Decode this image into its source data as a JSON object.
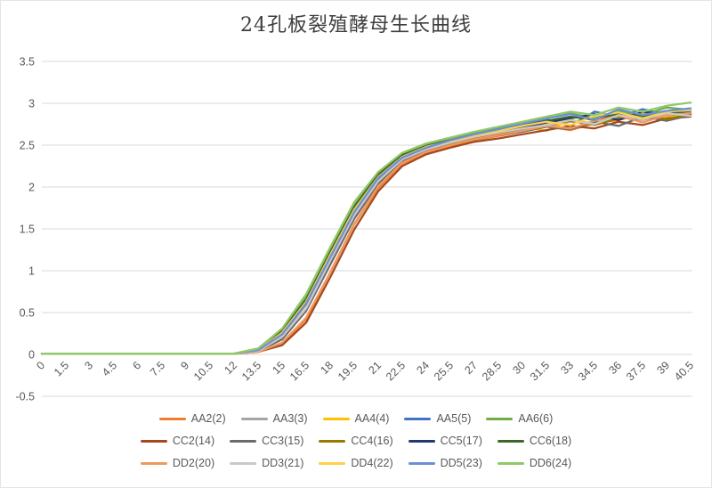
{
  "chart_data": {
    "type": "line",
    "title": "24孔板裂殖酵母生长曲线",
    "xlabel": "",
    "ylabel": "",
    "x": [
      0,
      1.5,
      3,
      4.5,
      6,
      7.5,
      9,
      10.5,
      12,
      13.5,
      15,
      16.5,
      18,
      19.5,
      21,
      22.5,
      24,
      25.5,
      27,
      28.5,
      30,
      31.5,
      33,
      34.5,
      36,
      37.5,
      39,
      40.5
    ],
    "x_tick_labels": [
      "0",
      "1.5",
      "3",
      "4.5",
      "6",
      "7.5",
      "9",
      "10.5",
      "12",
      "13.5",
      "15",
      "16.5",
      "18",
      "19.5",
      "21",
      "22.5",
      "24",
      "25.5",
      "27",
      "28.5",
      "30",
      "31.5",
      "33",
      "34.5",
      "36",
      "37.5",
      "39",
      "40.5"
    ],
    "ylim": [
      -0.5,
      3.5
    ],
    "y_ticks": [
      3.5,
      3,
      2.5,
      2,
      1.5,
      1,
      0.5,
      0,
      -0.5
    ],
    "y_tick_labels": [
      "3.5",
      "3",
      "2.5",
      "2",
      "1.5",
      "1",
      "0.5",
      "0",
      "-0.5"
    ],
    "grid": "horizontal",
    "legend_position": "bottom",
    "legend_columns": 5,
    "styles": {
      "axis_text_color": "#595959",
      "gridline_color": "#D9D9D9",
      "title_color": "#3D3D3D",
      "background": "#FFFFFF",
      "line_width": 2.25
    },
    "series": [
      {
        "name": "AA2(2)",
        "color": "#ED7D31",
        "values": [
          0.01,
          0.01,
          0.01,
          0.01,
          0.01,
          0.01,
          0.01,
          0.01,
          0.01,
          0.03,
          0.13,
          0.42,
          0.98,
          1.55,
          1.99,
          2.28,
          2.41,
          2.49,
          2.56,
          2.61,
          2.66,
          2.72,
          2.68,
          2.76,
          2.8,
          2.88,
          2.8,
          2.85
        ]
      },
      {
        "name": "AA3(3)",
        "color": "#A5A5A5",
        "values": [
          0.01,
          0.01,
          0.01,
          0.01,
          0.01,
          0.01,
          0.01,
          0.01,
          0.01,
          0.04,
          0.2,
          0.54,
          1.1,
          1.65,
          2.06,
          2.32,
          2.44,
          2.52,
          2.59,
          2.64,
          2.69,
          2.72,
          2.78,
          2.76,
          2.83,
          2.8,
          2.87,
          2.84
        ]
      },
      {
        "name": "AA4(4)",
        "color": "#FFC000",
        "values": [
          0.01,
          0.01,
          0.01,
          0.01,
          0.01,
          0.01,
          0.01,
          0.01,
          0.01,
          0.05,
          0.26,
          0.62,
          1.18,
          1.72,
          2.11,
          2.35,
          2.47,
          2.54,
          2.61,
          2.66,
          2.72,
          2.67,
          2.8,
          2.76,
          2.85,
          2.88,
          2.83,
          2.89
        ]
      },
      {
        "name": "AA5(5)",
        "color": "#4472C4",
        "values": [
          0.01,
          0.01,
          0.01,
          0.01,
          0.01,
          0.01,
          0.01,
          0.01,
          0.01,
          0.05,
          0.24,
          0.6,
          1.15,
          1.7,
          2.1,
          2.34,
          2.46,
          2.55,
          2.62,
          2.68,
          2.75,
          2.81,
          2.73,
          2.9,
          2.84,
          2.93,
          2.87,
          2.91
        ]
      },
      {
        "name": "AA6(6)",
        "color": "#70AD47",
        "values": [
          0.01,
          0.01,
          0.01,
          0.01,
          0.01,
          0.01,
          0.01,
          0.01,
          0.01,
          0.07,
          0.3,
          0.7,
          1.26,
          1.8,
          2.17,
          2.4,
          2.51,
          2.58,
          2.65,
          2.71,
          2.76,
          2.83,
          2.88,
          2.82,
          2.91,
          2.86,
          2.95,
          2.92
        ]
      },
      {
        "name": "CC2(14)",
        "color": "#A5491C",
        "values": [
          0.01,
          0.01,
          0.01,
          0.01,
          0.01,
          0.01,
          0.01,
          0.01,
          0.01,
          0.03,
          0.11,
          0.38,
          0.92,
          1.49,
          1.95,
          2.25,
          2.39,
          2.47,
          2.54,
          2.58,
          2.63,
          2.68,
          2.73,
          2.7,
          2.78,
          2.74,
          2.82,
          2.84
        ]
      },
      {
        "name": "CC3(15)",
        "color": "#6B6B6B",
        "values": [
          0.01,
          0.01,
          0.01,
          0.01,
          0.01,
          0.01,
          0.01,
          0.01,
          0.01,
          0.04,
          0.18,
          0.52,
          1.07,
          1.62,
          2.04,
          2.31,
          2.43,
          2.51,
          2.57,
          2.62,
          2.66,
          2.72,
          2.69,
          2.78,
          2.73,
          2.84,
          2.79,
          2.86
        ]
      },
      {
        "name": "CC4(16)",
        "color": "#987800",
        "values": [
          0.01,
          0.01,
          0.01,
          0.01,
          0.01,
          0.01,
          0.01,
          0.01,
          0.01,
          0.05,
          0.24,
          0.6,
          1.15,
          1.69,
          2.09,
          2.33,
          2.45,
          2.53,
          2.59,
          2.64,
          2.7,
          2.74,
          2.79,
          2.74,
          2.82,
          2.86,
          2.81,
          2.87
        ]
      },
      {
        "name": "CC5(17)",
        "color": "#203A6B",
        "values": [
          0.01,
          0.01,
          0.01,
          0.01,
          0.01,
          0.01,
          0.01,
          0.01,
          0.01,
          0.05,
          0.25,
          0.62,
          1.17,
          1.71,
          2.11,
          2.35,
          2.47,
          2.54,
          2.61,
          2.66,
          2.71,
          2.77,
          2.82,
          2.87,
          2.8,
          2.9,
          2.86,
          2.88
        ]
      },
      {
        "name": "CC6(18)",
        "color": "#3F6628",
        "values": [
          0.01,
          0.01,
          0.01,
          0.01,
          0.01,
          0.01,
          0.01,
          0.01,
          0.01,
          0.06,
          0.28,
          0.66,
          1.22,
          1.76,
          2.15,
          2.38,
          2.49,
          2.56,
          2.63,
          2.69,
          2.73,
          2.79,
          2.84,
          2.8,
          2.88,
          2.84,
          2.91,
          2.87
        ]
      },
      {
        "name": "DD2(20)",
        "color": "#F0975C",
        "values": [
          0.01,
          0.01,
          0.01,
          0.01,
          0.01,
          0.01,
          0.01,
          0.01,
          0.01,
          0.03,
          0.14,
          0.44,
          0.98,
          1.56,
          2.01,
          2.29,
          2.42,
          2.5,
          2.57,
          2.62,
          2.67,
          2.73,
          2.7,
          2.79,
          2.85,
          2.77,
          2.86,
          2.88
        ]
      },
      {
        "name": "DD3(21)",
        "color": "#C9C9C9",
        "values": [
          0.01,
          0.01,
          0.01,
          0.01,
          0.01,
          0.01,
          0.01,
          0.01,
          0.01,
          0.04,
          0.21,
          0.55,
          1.12,
          1.66,
          2.07,
          2.33,
          2.45,
          2.53,
          2.6,
          2.65,
          2.7,
          2.74,
          2.8,
          2.75,
          2.86,
          2.81,
          2.88,
          2.85
        ]
      },
      {
        "name": "DD4(22)",
        "color": "#FFD04A",
        "values": [
          0.01,
          0.01,
          0.01,
          0.01,
          0.01,
          0.01,
          0.01,
          0.01,
          0.01,
          0.05,
          0.26,
          0.63,
          1.19,
          1.73,
          2.12,
          2.36,
          2.48,
          2.55,
          2.62,
          2.67,
          2.73,
          2.78,
          2.74,
          2.85,
          2.89,
          2.82,
          2.9,
          2.92
        ]
      },
      {
        "name": "DD5(23)",
        "color": "#6C8FD8",
        "values": [
          0.01,
          0.01,
          0.01,
          0.01,
          0.01,
          0.01,
          0.01,
          0.01,
          0.01,
          0.05,
          0.24,
          0.61,
          1.16,
          1.7,
          2.11,
          2.35,
          2.47,
          2.56,
          2.63,
          2.69,
          2.76,
          2.82,
          2.87,
          2.8,
          2.93,
          2.86,
          2.91,
          2.94
        ]
      },
      {
        "name": "DD6(24)",
        "color": "#8FC968",
        "values": [
          0.01,
          0.01,
          0.01,
          0.01,
          0.01,
          0.01,
          0.01,
          0.01,
          0.01,
          0.07,
          0.31,
          0.72,
          1.28,
          1.82,
          2.18,
          2.41,
          2.52,
          2.59,
          2.66,
          2.72,
          2.78,
          2.84,
          2.9,
          2.86,
          2.95,
          2.9,
          2.97,
          3.01
        ]
      }
    ]
  }
}
